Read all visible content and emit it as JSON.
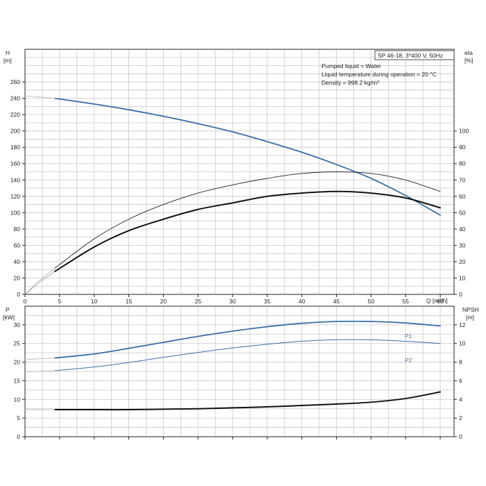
{
  "chart_data": [
    {
      "type": "line",
      "title": "SP 46-18, 3*400 V, 50Hz",
      "annotations": [
        "Pumped liquid = Water",
        "Liquid temperature during operation = 20 °C",
        "Density = 998.2 kg/m³"
      ],
      "xlabel": "Q [m³/h]",
      "ylabel_left": [
        "H",
        "[m]"
      ],
      "ylabel_right": [
        "eta",
        "[%]"
      ],
      "xlim": [
        0,
        62
      ],
      "ylim_left": [
        0,
        300
      ],
      "ylim_right": [
        0,
        150
      ],
      "x_ticks": [
        0,
        5,
        10,
        15,
        20,
        25,
        30,
        35,
        40,
        45,
        50,
        55,
        60
      ],
      "y_ticks_left": [
        0,
        20,
        40,
        60,
        80,
        100,
        120,
        140,
        160,
        180,
        200,
        220,
        240,
        260
      ],
      "y_ticks_right": [
        0,
        10,
        20,
        30,
        40,
        50,
        60,
        70,
        80,
        90,
        100
      ],
      "grid": true,
      "series": [
        {
          "axis": "left",
          "color": "#3a6ea5",
          "width": 1.8,
          "x": [
            4.3,
            10,
            15,
            20,
            25,
            30,
            35,
            40,
            45,
            50,
            55,
            60
          ],
          "y": [
            240,
            233,
            226,
            218,
            209,
            199,
            187,
            174,
            159,
            142,
            121,
            97
          ]
        },
        {
          "axis": "left",
          "color": "#b8b8b8",
          "width": 0.9,
          "x": [
            0,
            4.3
          ],
          "y": [
            243,
            240
          ]
        },
        {
          "axis": "right",
          "color": "#222222",
          "width": 0.9,
          "x": [
            4.3,
            10,
            15,
            20,
            25,
            30,
            35,
            40,
            45,
            50,
            55,
            60
          ],
          "y": [
            16,
            34,
            46,
            55,
            62,
            67,
            71,
            74,
            75,
            74,
            70,
            63
          ]
        },
        {
          "axis": "right",
          "color": "#999999",
          "width": 0.7,
          "x": [
            0,
            2,
            4.3
          ],
          "y": [
            0,
            8,
            16
          ]
        },
        {
          "axis": "right",
          "color": "#111111",
          "width": 2,
          "x": [
            4.3,
            10,
            15,
            20,
            25,
            30,
            35,
            40,
            45,
            50,
            55,
            60
          ],
          "y": [
            14,
            29,
            39,
            46,
            52,
            56,
            60,
            62,
            63,
            62,
            59,
            53
          ]
        },
        {
          "axis": "right",
          "color": "#999999",
          "width": 0.7,
          "x": [
            0,
            2,
            4.3
          ],
          "y": [
            0,
            7,
            14
          ]
        }
      ]
    },
    {
      "type": "line",
      "ylabel_left": [
        "P",
        "[kW]"
      ],
      "ylabel_right": [
        "NPSH",
        "[m]"
      ],
      "xlim": [
        0,
        62
      ],
      "ylim_left": [
        0,
        35
      ],
      "ylim_right": [
        0,
        14
      ],
      "y_ticks_left": [
        0,
        5,
        10,
        15,
        20,
        25,
        30
      ],
      "y_ticks_right": [
        0,
        2,
        4,
        6,
        8,
        10,
        12
      ],
      "grid": true,
      "series": [
        {
          "name": "P1",
          "axis": "left",
          "color": "#3a6ea5",
          "width": 1.8,
          "x": [
            4.3,
            10,
            15,
            20,
            25,
            30,
            35,
            40,
            45,
            50,
            55,
            60
          ],
          "y": [
            21.1,
            22.2,
            23.7,
            25.3,
            26.9,
            28.3,
            29.5,
            30.4,
            30.9,
            30.9,
            30.5,
            29.7
          ]
        },
        {
          "axis": "left",
          "color": "#b8b8b8",
          "width": 0.9,
          "x": [
            0,
            4.3
          ],
          "y": [
            20.7,
            21.1
          ]
        },
        {
          "name": "P2",
          "axis": "left",
          "color": "#3a6ea5",
          "width": 1,
          "x": [
            4.3,
            10,
            15,
            20,
            25,
            30,
            35,
            40,
            45,
            50,
            55,
            60
          ],
          "y": [
            17.7,
            18.7,
            19.9,
            21.3,
            22.6,
            23.8,
            24.8,
            25.6,
            26.0,
            26.0,
            25.6,
            25.0
          ]
        },
        {
          "axis": "left",
          "color": "#b8b8b8",
          "width": 0.9,
          "x": [
            0,
            4.3
          ],
          "y": [
            17.4,
            17.7
          ]
        },
        {
          "axis": "right",
          "color": "#111111",
          "width": 2,
          "x": [
            4.3,
            10,
            15,
            20,
            25,
            30,
            35,
            40,
            45,
            50,
            55,
            60
          ],
          "y": [
            2.9,
            2.9,
            2.9,
            2.95,
            3.0,
            3.1,
            3.2,
            3.35,
            3.5,
            3.7,
            4.1,
            4.8
          ]
        },
        {
          "axis": "right",
          "color": "#b8b8b8",
          "width": 0.9,
          "x": [
            0,
            4.3
          ],
          "y": [
            2.9,
            2.9
          ]
        }
      ]
    }
  ]
}
